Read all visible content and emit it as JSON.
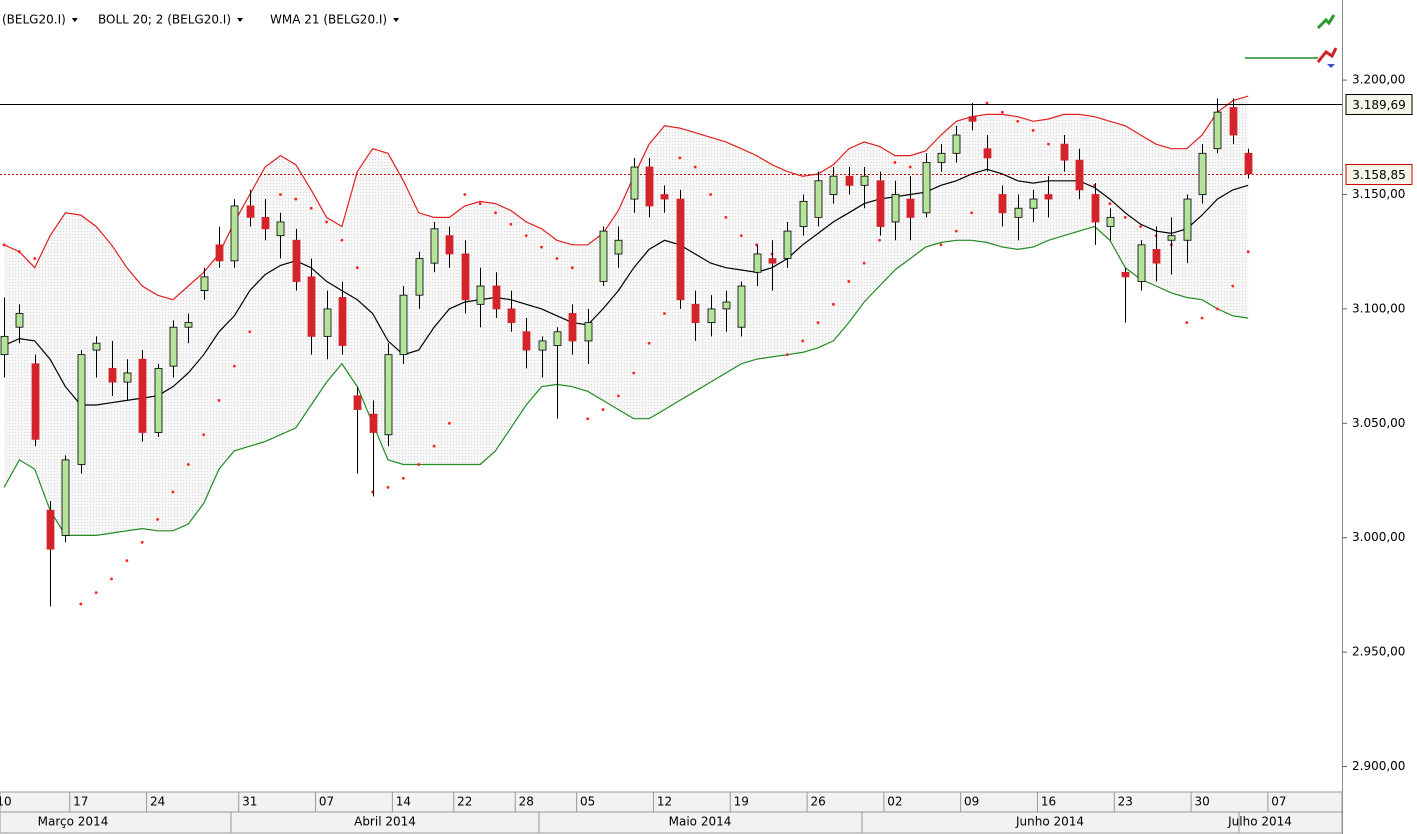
{
  "chart_data": {
    "type": "candlestick",
    "categories": [
      "10",
      null,
      null,
      null,
      null,
      "17",
      null,
      null,
      null,
      null,
      "24",
      null,
      null,
      null,
      null,
      null,
      "31",
      null,
      null,
      null,
      null,
      "07",
      null,
      null,
      null,
      null,
      "14",
      null,
      null,
      null,
      "22",
      null,
      null,
      null,
      "28",
      null,
      null,
      null,
      "05",
      null,
      null,
      null,
      null,
      "12",
      null,
      null,
      null,
      null,
      "19",
      null,
      null,
      null,
      null,
      "26",
      null,
      null,
      null,
      null,
      "02",
      null,
      null,
      null,
      null,
      "09",
      null,
      null,
      null,
      null,
      "16",
      null,
      null,
      null,
      null,
      "23",
      null,
      null,
      null,
      null,
      "30",
      null,
      null,
      null,
      null,
      "07"
    ],
    "months": [
      "Março 2014",
      "Abril 2014",
      "Maio 2014",
      "Junho 2014",
      "Julho 2014"
    ],
    "candles": {
      "name": "(BELG20.I)",
      "name_color": "#cc0000",
      "up_color": "#b5e39a",
      "down_color": "#d4232a",
      "open": [
        3080,
        3092,
        3076,
        3012,
        3001,
        3032,
        3082,
        3074,
        3068,
        3078,
        3046,
        3075,
        3092,
        3108,
        3128,
        3121,
        3145,
        3140,
        3132,
        3130,
        3114,
        3088,
        3105,
        3062,
        3054,
        3045,
        3080,
        3106,
        3120,
        3132,
        3124,
        3102,
        3110,
        3100,
        3090,
        3082,
        3084,
        3098,
        3086,
        3112,
        3124,
        3148,
        3162,
        3150,
        3148,
        3102,
        3094,
        3100,
        3092,
        3116,
        3122,
        3122,
        3136,
        3140,
        3150,
        3158,
        3154,
        3156,
        3138,
        3148,
        3142,
        3164,
        3168,
        3184,
        3170,
        3150,
        3140,
        3144,
        3150,
        3172,
        3165,
        3150,
        3136,
        3116,
        3112,
        3126,
        3130,
        3130,
        3150,
        3170,
        3188,
        3168,
        null,
        null
      ],
      "high": [
        3105,
        3102,
        3080,
        3016,
        3036,
        3082,
        3088,
        3086,
        3078,
        3082,
        3076,
        3095,
        3098,
        3118,
        3136,
        3148,
        3152,
        3148,
        3142,
        3135,
        3122,
        3108,
        3112,
        3066,
        3060,
        3085,
        3110,
        3125,
        3138,
        3136,
        3130,
        3118,
        3116,
        3108,
        3096,
        3088,
        3092,
        3102,
        3100,
        3136,
        3136,
        3166,
        3166,
        3154,
        3152,
        3108,
        3106,
        3108,
        3112,
        3128,
        3130,
        3138,
        3150,
        3160,
        3162,
        3162,
        3162,
        3160,
        3156,
        3158,
        3168,
        3172,
        3180,
        3190,
        3176,
        3154,
        3150,
        3152,
        3158,
        3176,
        3170,
        3155,
        3144,
        3118,
        3130,
        3136,
        3140,
        3150,
        3172,
        3192,
        3192,
        3170,
        null,
        null
      ],
      "low": [
        3070,
        3085,
        3040,
        2970,
        2998,
        3028,
        3070,
        3062,
        3060,
        3042,
        3044,
        3070,
        3085,
        3104,
        3118,
        3118,
        3136,
        3130,
        3122,
        3108,
        3080,
        3078,
        3080,
        3028,
        3018,
        3040,
        3076,
        3100,
        3116,
        3118,
        3098,
        3092,
        3096,
        3090,
        3074,
        3070,
        3052,
        3080,
        3076,
        3110,
        3118,
        3142,
        3140,
        3142,
        3100,
        3086,
        3088,
        3090,
        3088,
        3110,
        3108,
        3118,
        3132,
        3136,
        3146,
        3150,
        3144,
        3132,
        3130,
        3130,
        3140,
        3160,
        3164,
        3178,
        3160,
        3136,
        3130,
        3138,
        3140,
        3160,
        3148,
        3128,
        3130,
        3094,
        3108,
        3112,
        3115,
        3120,
        3146,
        3168,
        3172,
        3157,
        null,
        null
      ],
      "close": [
        3088,
        3098,
        3043,
        2995,
        3034,
        3080,
        3085,
        3068,
        3072,
        3046,
        3074,
        3092,
        3094,
        3114,
        3121,
        3145,
        3140,
        3135,
        3138,
        3112,
        3088,
        3100,
        3084,
        3056,
        3046,
        3080,
        3106,
        3122,
        3135,
        3124,
        3104,
        3110,
        3100,
        3094,
        3082,
        3086,
        3090,
        3086,
        3094,
        3134,
        3130,
        3162,
        3145,
        3148,
        3104,
        3094,
        3100,
        3103,
        3110,
        3124,
        3120,
        3134,
        3147,
        3156,
        3158,
        3154,
        3158,
        3136,
        3150,
        3140,
        3164,
        3168,
        3176,
        3182,
        3166,
        3142,
        3144,
        3148,
        3148,
        3165,
        3152,
        3138,
        3140,
        3114,
        3128,
        3120,
        3132,
        3148,
        3168,
        3186,
        3176,
        3159,
        null,
        null
      ]
    },
    "bollinger": {
      "name": "BOLL 20; 2 (BELG20.I)",
      "upper": {
        "color": "#e02020",
        "values": [
          3128,
          3125,
          3118,
          3132,
          3142,
          3141,
          3136,
          3128,
          3118,
          3110,
          3106,
          3104,
          3110,
          3116,
          3124,
          3138,
          3150,
          3162,
          3167,
          3163,
          3152,
          3140,
          3136,
          3160,
          3170,
          3168,
          3156,
          3142,
          3140,
          3140,
          3145,
          3147,
          3146,
          3143,
          3138,
          3135,
          3130,
          3128,
          3128,
          3133,
          3143,
          3158,
          3172,
          3180,
          3179,
          3177,
          3175,
          3173,
          3170,
          3167,
          3163,
          3160,
          3158,
          3159,
          3163,
          3170,
          3173,
          3171,
          3167,
          3167,
          3169,
          3176,
          3182,
          3184,
          3185,
          3185,
          3184,
          3182,
          3183,
          3185,
          3185,
          3184,
          3182,
          3180,
          3176,
          3172,
          3170,
          3170,
          3176,
          3186,
          3191,
          3193,
          null,
          null
        ]
      },
      "lower": {
        "color": "#228b22",
        "values": [
          3022,
          3034,
          3030,
          3012,
          3001,
          3001,
          3001,
          3002,
          3003,
          3004,
          3003,
          3003,
          3006,
          3015,
          3030,
          3038,
          3040,
          3042,
          3045,
          3048,
          3058,
          3068,
          3076,
          3066,
          3050,
          3034,
          3032,
          3032,
          3032,
          3032,
          3032,
          3032,
          3038,
          3048,
          3058,
          3066,
          3067,
          3066,
          3064,
          3060,
          3056,
          3052,
          3052,
          3056,
          3060,
          3064,
          3068,
          3072,
          3076,
          3078,
          3079,
          3080,
          3081,
          3083,
          3086,
          3094,
          3103,
          3110,
          3117,
          3122,
          3127,
          3129,
          3130,
          3130,
          3129,
          3127,
          3126,
          3127,
          3130,
          3132,
          3134,
          3136,
          3130,
          3118,
          3113,
          3110,
          3107,
          3105,
          3104,
          3100,
          3097,
          3096,
          null,
          null
        ]
      }
    },
    "wma": {
      "name": "WMA 21 (BELG20.I)",
      "color": "#000000",
      "values": [
        3084,
        3087,
        3086,
        3078,
        3066,
        3058,
        3058,
        3059,
        3060,
        3061,
        3062,
        3066,
        3072,
        3080,
        3090,
        3097,
        3108,
        3115,
        3119,
        3121,
        3118,
        3112,
        3108,
        3104,
        3098,
        3086,
        3080,
        3082,
        3092,
        3100,
        3103,
        3104,
        3105,
        3104,
        3102,
        3100,
        3097,
        3094,
        3093,
        3100,
        3108,
        3118,
        3126,
        3130,
        3128,
        3124,
        3120,
        3118,
        3117,
        3116,
        3118,
        3122,
        3128,
        3133,
        3138,
        3142,
        3146,
        3148,
        3149,
        3150,
        3151,
        3154,
        3156,
        3159,
        3161,
        3159,
        3156,
        3155,
        3156,
        3156,
        3156,
        3153,
        3148,
        3142,
        3137,
        3134,
        3133,
        3135,
        3141,
        3148,
        3152,
        3154,
        null,
        null
      ]
    },
    "sar": {
      "color": "#ff2020",
      "values": [
        3128,
        3125,
        3122,
        null,
        null,
        2971,
        2976,
        2982,
        2990,
        2998,
        3008,
        3020,
        3032,
        3045,
        3060,
        3075,
        3090,
        null,
        3150,
        3148,
        3144,
        3138,
        3130,
        3118,
        3020,
        3022,
        3026,
        3032,
        3040,
        3050,
        3150,
        3146,
        3142,
        3137,
        3132,
        3127,
        3122,
        3118,
        3052,
        3056,
        3062,
        3072,
        3085,
        3098,
        3166,
        3162,
        3150,
        3140,
        3132,
        3128,
        3124,
        3080,
        3086,
        3094,
        3102,
        3112,
        3120,
        3130,
        3164,
        3162,
        3160,
        3128,
        3134,
        3142,
        3190,
        3186,
        3182,
        3178,
        3172,
        3166,
        3162,
        3154,
        3146,
        3140,
        3136,
        3132,
        3128,
        3094,
        3096,
        3100,
        3110,
        3125,
        null,
        null
      ]
    },
    "price_lines": [
      {
        "value": 3189.69,
        "label": "3.189,69",
        "color": "#000000",
        "dashed": false
      },
      {
        "value": 3158.85,
        "label": "3.158,85",
        "color": "#cc0000",
        "dashed": true
      }
    ],
    "ylim": [
      2881,
      3235
    ],
    "yticks": [
      {
        "value": 2900,
        "label": "2.900,00"
      },
      {
        "value": 2950,
        "label": "2.950,00"
      },
      {
        "value": 3000,
        "label": "3.000,00"
      },
      {
        "value": 3050,
        "label": "3.050,00"
      },
      {
        "value": 3100,
        "label": "3.100,00"
      },
      {
        "value": 3150,
        "label": "3.150,00"
      },
      {
        "value": 3200,
        "label": "3.200,00"
      }
    ]
  }
}
